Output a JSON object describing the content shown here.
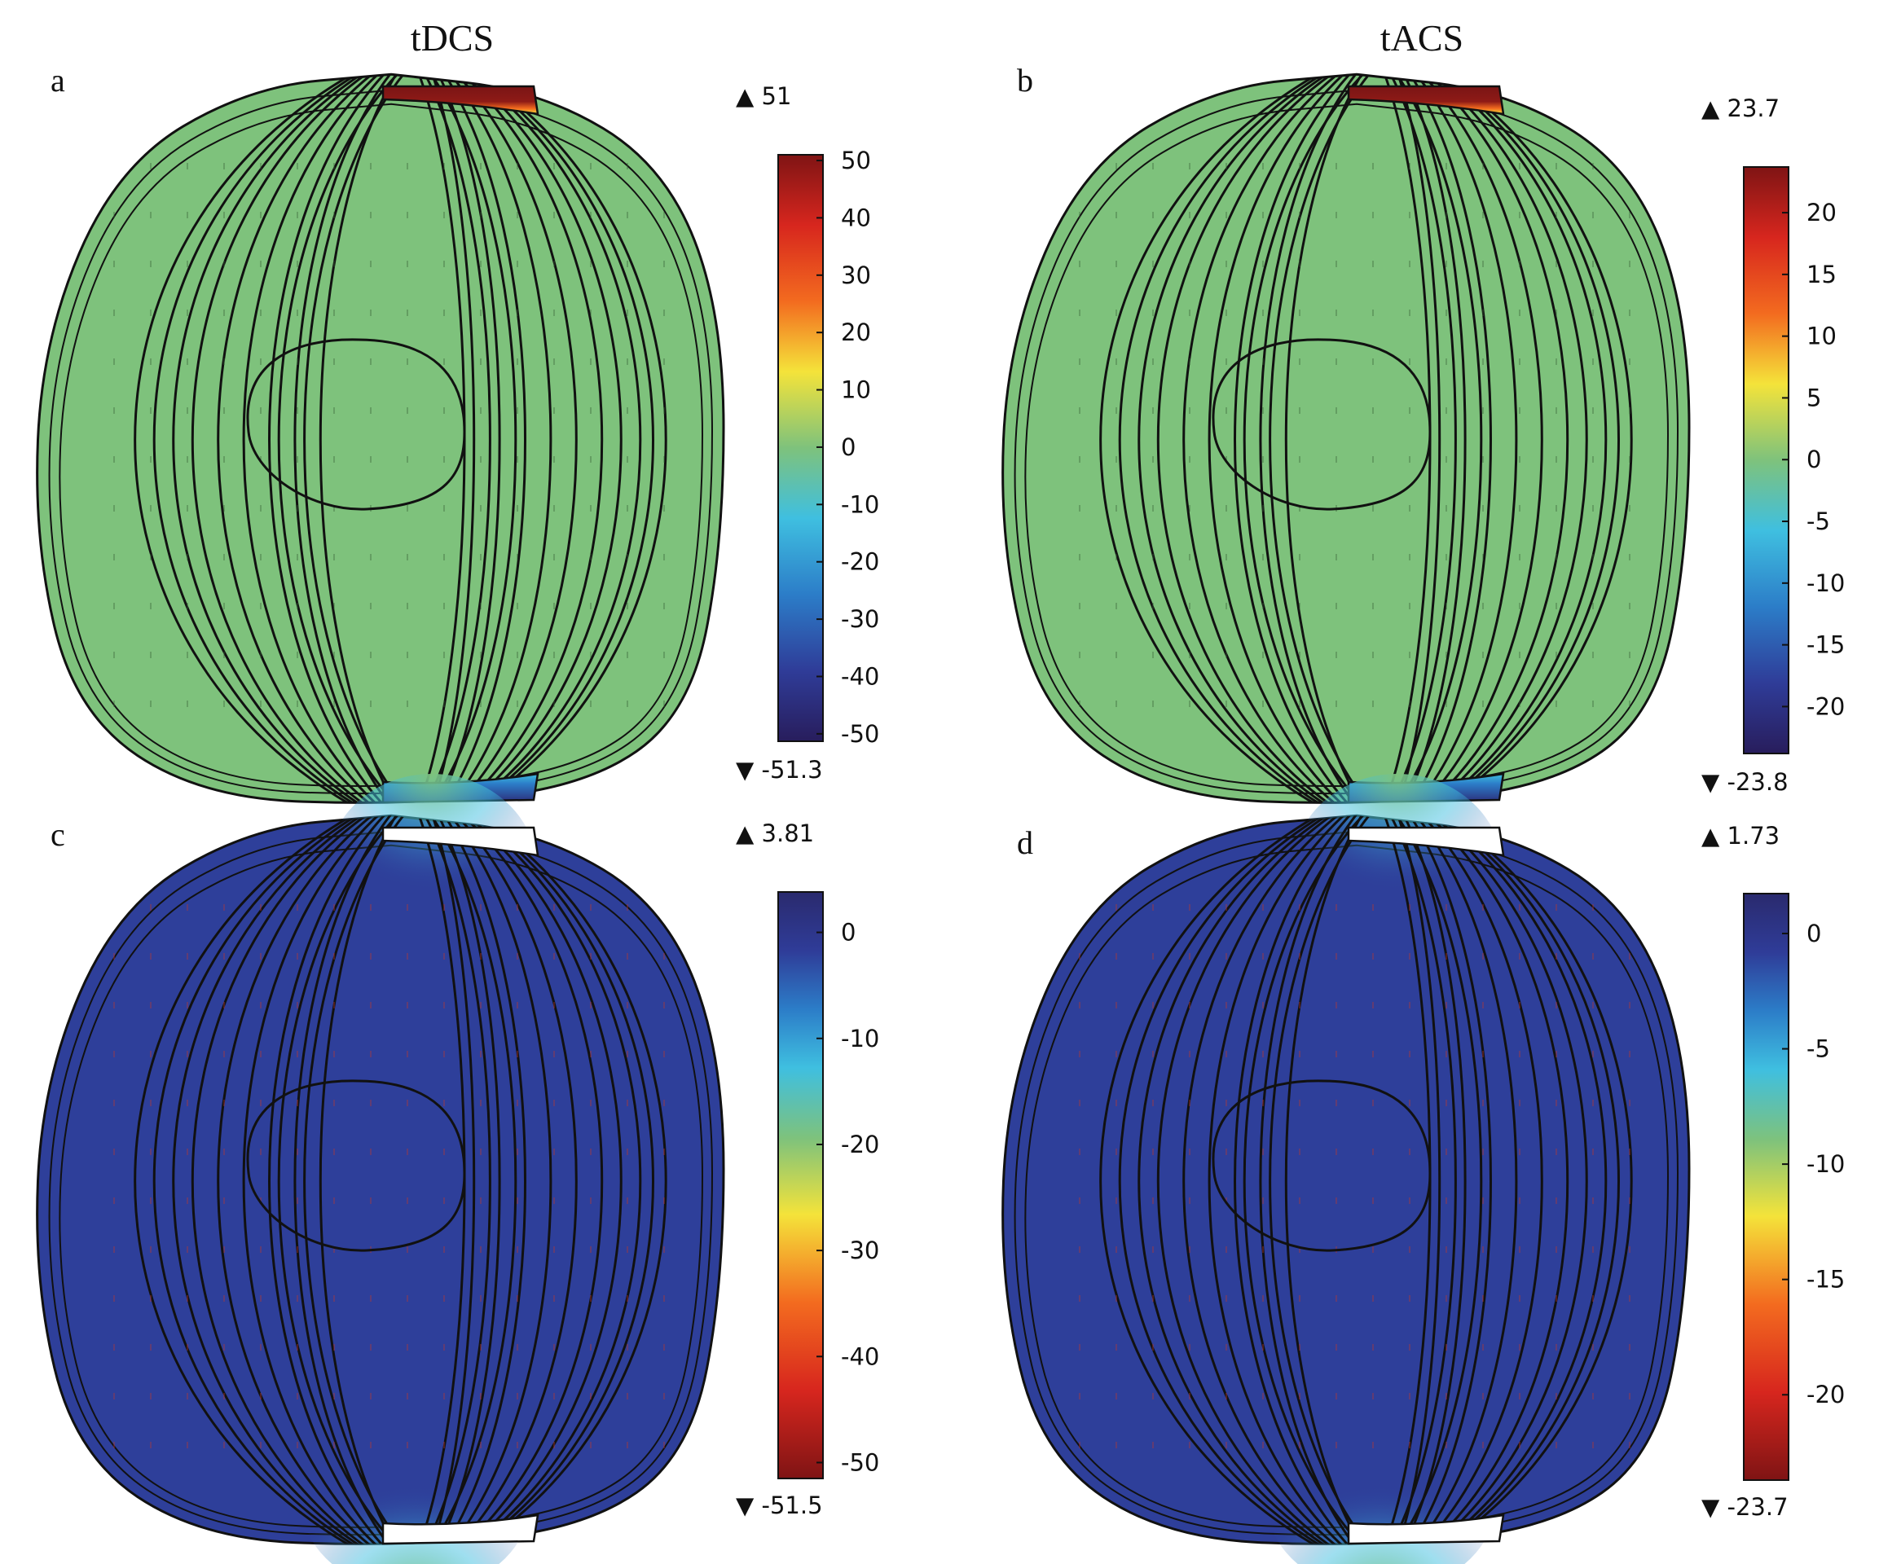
{
  "titles": {
    "left": "tDCS",
    "right": "tACS"
  },
  "panels": [
    {
      "id": "a",
      "letter": "a",
      "field": "green",
      "max_label": "▲ 51",
      "min_label": "▼ -51.3",
      "colorbar": {
        "type": "jet",
        "range_min": -51.3,
        "range_max": 51,
        "ticks": [
          "50",
          "40",
          "30",
          "20",
          "10",
          "0",
          "-10",
          "-20",
          "-30",
          "-40",
          "-50"
        ],
        "tick_values": [
          50,
          40,
          30,
          20,
          10,
          0,
          -10,
          -20,
          -30,
          -40,
          -50
        ]
      },
      "electrode_top_color": "#7a1515",
      "electrode_bottom_color": "#2c2d7a"
    },
    {
      "id": "b",
      "letter": "b",
      "field": "green",
      "max_label": "▲ 23.7",
      "min_label": "▼ -23.8",
      "colorbar": {
        "type": "jet",
        "range_min": -23.8,
        "range_max": 23.7,
        "ticks": [
          "20",
          "15",
          "10",
          "5",
          "0",
          "-5",
          "-10",
          "-15",
          "-20"
        ],
        "tick_values": [
          20,
          15,
          10,
          5,
          0,
          -5,
          -10,
          -15,
          -20
        ]
      },
      "electrode_top_color": "#7a1515",
      "electrode_bottom_color": "#2c2d7a"
    },
    {
      "id": "c",
      "letter": "c",
      "field": "blue",
      "max_label": "▲ 3.81",
      "min_label": "▼ -51.5",
      "colorbar": {
        "type": "jet_reversed",
        "range_min": -51.5,
        "range_max": 3.81,
        "ticks": [
          "0",
          "-10",
          "-20",
          "-30",
          "-40",
          "-50"
        ],
        "tick_values": [
          0,
          -10,
          -20,
          -30,
          -40,
          -50
        ]
      },
      "electrode_top_color": "#ffffff",
      "electrode_bottom_color": "#ffffff"
    },
    {
      "id": "d",
      "letter": "d",
      "field": "blue",
      "max_label": "▲ 1.73",
      "min_label": "▼ -23.7",
      "colorbar": {
        "type": "jet_reversed",
        "range_min": -23.7,
        "range_max": 1.73,
        "ticks": [
          "0",
          "-5",
          "-10",
          "-15",
          "-20"
        ],
        "tick_values": [
          0,
          -5,
          -10,
          -15,
          -20
        ]
      },
      "electrode_top_color": "#ffffff",
      "electrode_bottom_color": "#ffffff"
    }
  ],
  "colors": {
    "green_field": "#7ec27c",
    "blue_field": "#2e3f9a",
    "streamline": "#111111"
  }
}
